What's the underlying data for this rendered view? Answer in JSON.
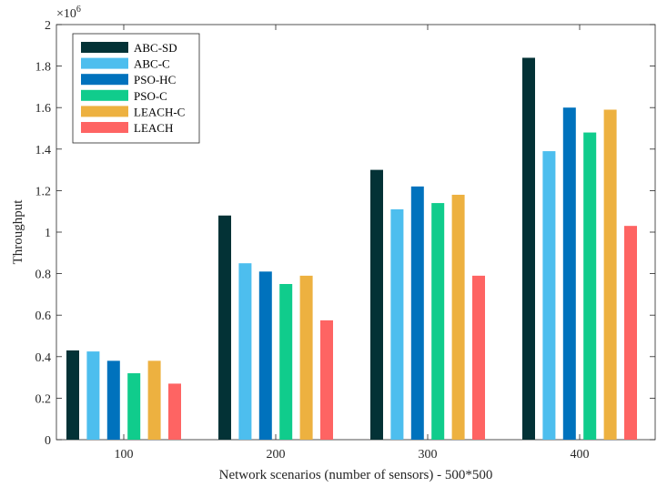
{
  "chart_data": {
    "type": "bar",
    "title": "",
    "xlabel": "Network scenarios (number of sensors) - 500*500",
    "ylabel": "Throughput",
    "y_exponent_label": "×10",
    "y_exponent_power": "6",
    "categories": [
      "100",
      "200",
      "300",
      "400"
    ],
    "ylim": [
      0,
      2
    ],
    "yticks": [
      "0",
      "0.2",
      "0.4",
      "0.6",
      "0.8",
      "1",
      "1.2",
      "1.4",
      "1.6",
      "1.8",
      "2"
    ],
    "grid": false,
    "legend_position": "top-left",
    "series": [
      {
        "name": "ABC-SD",
        "color": "#033236",
        "values": [
          0.43,
          1.08,
          1.3,
          1.84
        ]
      },
      {
        "name": "ABC-C",
        "color": "#4dbeee",
        "values": [
          0.425,
          0.85,
          1.11,
          1.39
        ]
      },
      {
        "name": "PSO-HC",
        "color": "#0072bd",
        "values": [
          0.38,
          0.81,
          1.22,
          1.6
        ]
      },
      {
        "name": "PSO-C",
        "color": "#10cc8c",
        "values": [
          0.32,
          0.75,
          1.14,
          1.48
        ]
      },
      {
        "name": "LEACH-C",
        "color": "#edb140",
        "values": [
          0.38,
          0.79,
          1.18,
          1.59
        ]
      },
      {
        "name": "LEACH",
        "color": "#fe6463",
        "values": [
          0.27,
          0.575,
          0.79,
          1.03
        ]
      }
    ]
  }
}
